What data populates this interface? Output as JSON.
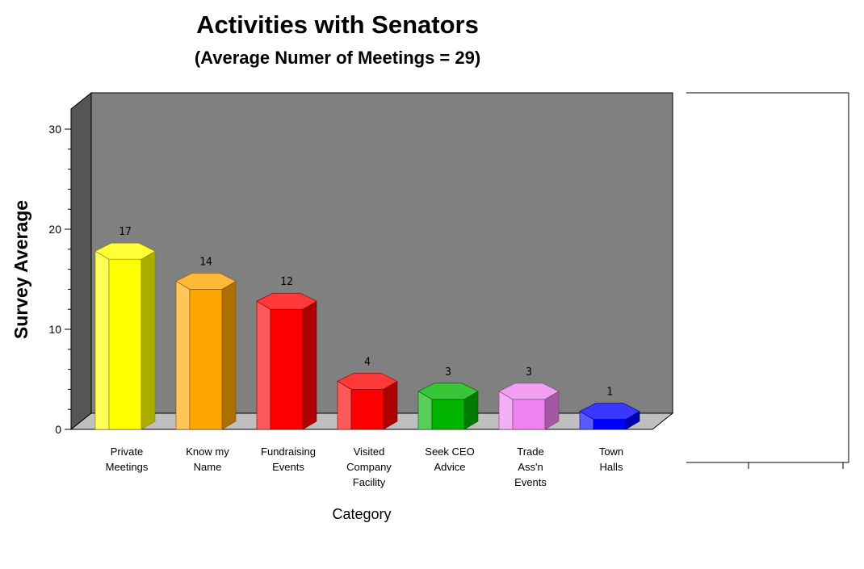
{
  "chart_data": {
    "type": "bar",
    "title": "Activities with Senators",
    "subtitle": "(Average Numer of Meetings =  29)",
    "xlabel": "Category",
    "ylabel": "Survey Average",
    "ylim": [
      0,
      30
    ],
    "yticks": [
      "0",
      "10",
      "20",
      "30"
    ],
    "categories": [
      [
        "Private",
        "Meetings"
      ],
      [
        "Know my",
        "Name"
      ],
      [
        "Fundraising",
        "Events"
      ],
      [
        "Visited",
        "Company",
        "Facility"
      ],
      [
        "Seek CEO",
        "Advice"
      ],
      [
        "Trade",
        "Ass'n",
        "Events"
      ],
      [
        "Town",
        "Halls"
      ]
    ],
    "values": [
      17,
      14,
      12,
      4,
      3,
      3,
      1
    ],
    "value_labels": [
      "17",
      "14",
      "12",
      "4",
      "3",
      "3",
      "1"
    ],
    "colors": [
      "#ffff00",
      "#ffa500",
      "#ff0000",
      "#ff0000",
      "#00b400",
      "#ee82ee",
      "#0000ff"
    ],
    "wall_color": "#808080",
    "grid": false,
    "legend": "none"
  }
}
